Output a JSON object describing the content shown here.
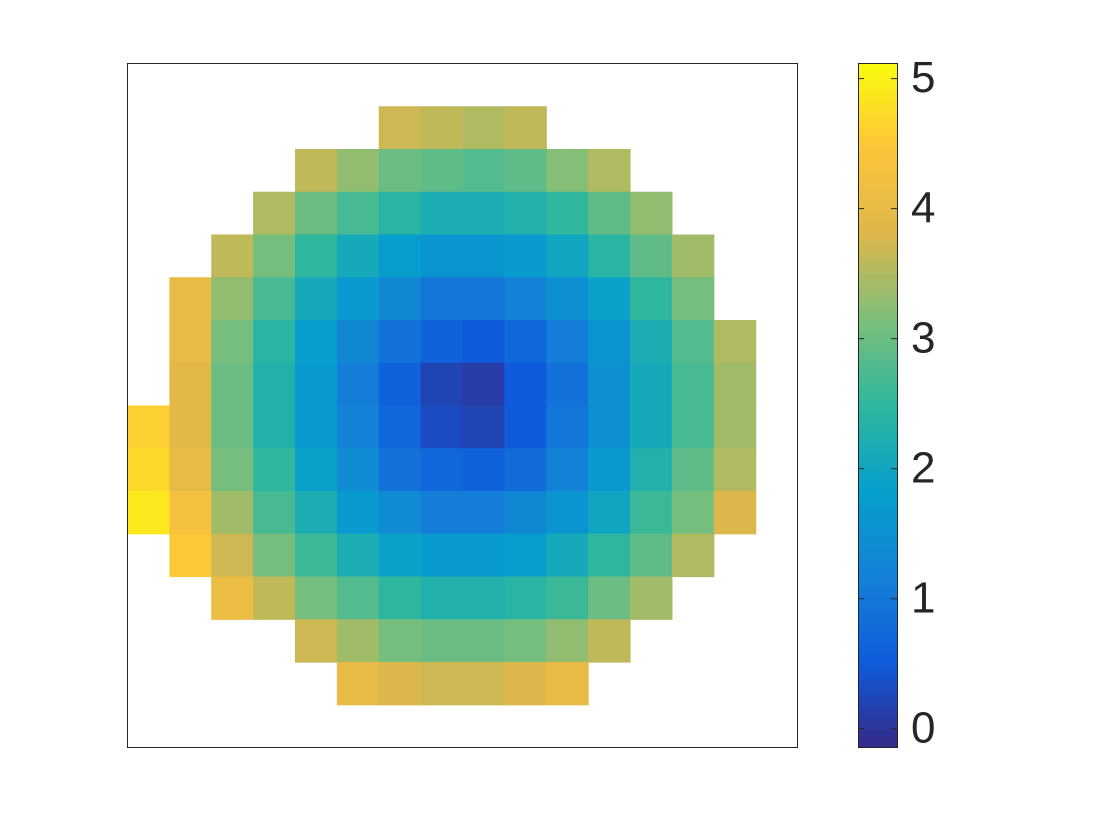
{
  "chart_data": {
    "type": "heatmap",
    "colormap": "parula",
    "clim": [
      -0.14,
      5.12
    ],
    "colorbar_ticks": [
      0,
      1,
      2,
      3,
      4,
      5
    ],
    "values": [
      [
        null,
        null,
        null,
        null,
        null,
        null,
        null,
        null,
        null,
        null,
        null,
        null,
        null,
        null,
        null,
        null
      ],
      [
        null,
        null,
        null,
        null,
        null,
        null,
        3.7,
        3.6,
        3.5,
        3.6,
        null,
        null,
        null,
        null,
        null,
        null
      ],
      [
        null,
        null,
        null,
        null,
        3.6,
        3.3,
        3.0,
        2.9,
        2.8,
        2.9,
        3.2,
        3.5,
        null,
        null,
        null,
        null
      ],
      [
        null,
        null,
        null,
        3.5,
        3.0,
        2.7,
        2.4,
        2.2,
        2.2,
        2.3,
        2.5,
        2.9,
        3.3,
        null,
        null,
        null
      ],
      [
        null,
        null,
        3.6,
        3.1,
        2.5,
        2.1,
        1.8,
        1.6,
        1.6,
        1.7,
        2.0,
        2.4,
        2.9,
        3.4,
        null,
        null
      ],
      [
        null,
        4.0,
        3.3,
        2.7,
        2.1,
        1.7,
        1.3,
        1.0,
        1.0,
        1.2,
        1.5,
        1.9,
        2.5,
        3.1,
        null,
        null
      ],
      [
        null,
        4.0,
        3.1,
        2.4,
        1.8,
        1.3,
        0.9,
        0.6,
        0.5,
        0.7,
        1.1,
        1.6,
        2.2,
        2.8,
        3.5,
        null
      ],
      [
        null,
        3.9,
        3.0,
        2.3,
        1.7,
        1.1,
        0.6,
        0.2,
        0.1,
        0.5,
        0.9,
        1.5,
        2.1,
        2.7,
        3.4,
        null
      ],
      [
        4.6,
        3.9,
        3.0,
        2.3,
        1.7,
        1.2,
        0.7,
        0.3,
        0.2,
        0.5,
        1.0,
        1.5,
        2.1,
        2.7,
        3.4,
        null
      ],
      [
        4.7,
        4.0,
        3.1,
        2.5,
        1.9,
        1.4,
        0.9,
        0.7,
        0.6,
        0.8,
        1.2,
        1.7,
        2.3,
        2.9,
        3.5,
        null
      ],
      [
        4.9,
        4.3,
        3.4,
        2.7,
        2.2,
        1.7,
        1.4,
        1.1,
        1.1,
        1.3,
        1.6,
        2.0,
        2.6,
        3.1,
        3.8,
        null
      ],
      [
        null,
        4.5,
        3.7,
        3.1,
        2.6,
        2.2,
        1.9,
        1.7,
        1.7,
        1.8,
        2.1,
        2.5,
        2.9,
        3.5,
        null,
        null
      ],
      [
        null,
        null,
        4.1,
        3.6,
        3.1,
        2.8,
        2.5,
        2.3,
        2.3,
        2.4,
        2.6,
        3.0,
        3.4,
        null,
        null,
        null
      ],
      [
        null,
        null,
        null,
        null,
        3.7,
        3.4,
        3.1,
        3.0,
        3.0,
        3.1,
        3.3,
        3.6,
        null,
        null,
        null,
        null
      ],
      [
        null,
        null,
        null,
        null,
        null,
        4.0,
        3.8,
        3.7,
        3.7,
        3.8,
        4.0,
        null,
        null,
        null,
        null,
        null
      ],
      [
        null,
        null,
        null,
        null,
        null,
        null,
        null,
        null,
        null,
        null,
        null,
        null,
        null,
        null,
        null,
        null
      ]
    ]
  }
}
